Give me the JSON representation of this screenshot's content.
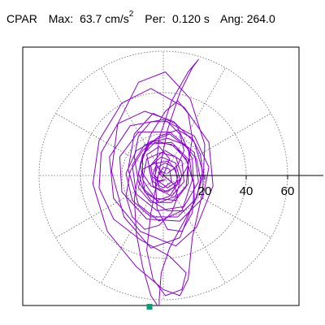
{
  "header": {
    "station": "CPAR",
    "max_label": "Max:",
    "max_value": "63.7",
    "max_unit": "cm/s",
    "max_unit_exp": "2",
    "per_label": "Per:",
    "per_value": "0.120 s",
    "ang_label": "Ang:",
    "ang_value": "264.0"
  },
  "chart_data": {
    "type": "scatter",
    "title": "",
    "xlabel": "",
    "ylabel": "",
    "radial_ticks": [
      20,
      40,
      60
    ],
    "radial_tick_labels": [
      "20",
      "40",
      "60"
    ],
    "radial_grid_circles": [
      20,
      40,
      60
    ],
    "angular_grid_step_deg": 30,
    "grid": true,
    "range": [
      -68,
      68
    ],
    "peak_marker": {
      "angle_deg": 264.0,
      "radius": 63.7,
      "color": "#0f9a7a"
    },
    "trace_color": "#8b00d8",
    "series": [
      {
        "type": "line",
        "points": [
          [
            0,
            0
          ],
          [
            3,
            8
          ],
          [
            -2,
            14
          ],
          [
            -8,
            10
          ],
          [
            -6,
            0
          ],
          [
            2,
            -6
          ],
          [
            8,
            -2
          ],
          [
            6,
            6
          ],
          [
            -1,
            9
          ],
          [
            -7,
            4
          ],
          [
            -5,
            -5
          ],
          [
            4,
            -10
          ],
          [
            10,
            -3
          ],
          [
            9,
            7
          ],
          [
            1,
            12
          ],
          [
            -8,
            8
          ],
          [
            -10,
            -2
          ],
          [
            -4,
            -11
          ],
          [
            6,
            -12
          ],
          [
            12,
            -4
          ],
          [
            12,
            8
          ],
          [
            4,
            16
          ],
          [
            -9,
            15
          ],
          [
            -15,
            5
          ],
          [
            -13,
            -9
          ],
          [
            -3,
            -17
          ],
          [
            10,
            -15
          ],
          [
            17,
            -3
          ],
          [
            15,
            11
          ],
          [
            3,
            21
          ],
          [
            -12,
            21
          ],
          [
            -21,
            9
          ],
          [
            -20,
            -8
          ],
          [
            -8,
            -21
          ],
          [
            8,
            -22
          ],
          [
            19,
            -11
          ],
          [
            22,
            4
          ],
          [
            15,
            19
          ],
          [
            0,
            27
          ],
          [
            -16,
            24
          ],
          [
            -26,
            9
          ],
          [
            -24,
            -11
          ],
          [
            -11,
            -27
          ],
          [
            6,
            -34
          ],
          [
            16,
            -25
          ],
          [
            24,
            -5
          ],
          [
            22,
            16
          ],
          [
            10,
            33
          ],
          [
            -6,
            42
          ],
          [
            -20,
            35
          ],
          [
            -31,
            17
          ],
          [
            -34,
            -4
          ],
          [
            -27,
            -27
          ],
          [
            -13,
            -44
          ],
          [
            0,
            -55
          ],
          [
            8,
            -58
          ],
          [
            12,
            -50
          ],
          [
            14,
            -30
          ],
          [
            19,
            -8
          ],
          [
            20,
            15
          ],
          [
            13,
            37
          ],
          [
            1,
            50
          ],
          [
            -12,
            45
          ],
          [
            -22,
            25
          ],
          [
            -25,
            2
          ],
          [
            -19,
            -20
          ],
          [
            -6,
            -35
          ],
          [
            8,
            -30
          ],
          [
            15,
            -12
          ],
          [
            14,
            8
          ],
          [
            6,
            25
          ],
          [
            -5,
            30
          ],
          [
            -14,
            20
          ],
          [
            -17,
            3
          ],
          [
            -12,
            -14
          ],
          [
            -2,
            -22
          ],
          [
            9,
            -17
          ],
          [
            14,
            -2
          ],
          [
            12,
            13
          ],
          [
            3,
            20
          ],
          [
            -7,
            16
          ],
          [
            -11,
            5
          ],
          [
            -9,
            -7
          ],
          [
            -2,
            -13
          ],
          [
            6,
            -10
          ],
          [
            9,
            0
          ],
          [
            6,
            9
          ],
          [
            -1,
            11
          ],
          [
            -6,
            5
          ],
          [
            -5,
            -3
          ],
          [
            0,
            -6
          ],
          [
            4,
            -3
          ],
          [
            3,
            3
          ],
          [
            0,
            4
          ],
          [
            -2,
            1
          ],
          [
            0,
            -1
          ]
        ]
      },
      {
        "type": "line",
        "points": [
          [
            0,
            0
          ],
          [
            -4,
            6
          ],
          [
            -10,
            3
          ],
          [
            -12,
            -6
          ],
          [
            -6,
            -13
          ],
          [
            4,
            -13
          ],
          [
            11,
            -5
          ],
          [
            12,
            6
          ],
          [
            6,
            14
          ],
          [
            -4,
            17
          ],
          [
            -13,
            12
          ],
          [
            -18,
            1
          ],
          [
            -15,
            -12
          ],
          [
            -6,
            -20
          ],
          [
            7,
            -20
          ],
          [
            16,
            -11
          ],
          [
            19,
            2
          ],
          [
            15,
            16
          ],
          [
            5,
            26
          ],
          [
            -9,
            31
          ],
          [
            -22,
            25
          ],
          [
            -30,
            11
          ],
          [
            -31,
            -6
          ],
          [
            -24,
            -21
          ],
          [
            -11,
            -31
          ],
          [
            3,
            -39
          ],
          [
            11,
            -47
          ],
          [
            9,
            -55
          ],
          [
            1,
            -58
          ],
          [
            -5,
            -50
          ],
          [
            -8,
            -36
          ],
          [
            -6,
            -18
          ],
          [
            -2,
            2
          ],
          [
            2,
            22
          ],
          [
            8,
            40
          ],
          [
            14,
            52
          ],
          [
            17,
            56
          ],
          [
            12,
            50
          ],
          [
            4,
            36
          ],
          [
            -2,
            18
          ],
          [
            -4,
            0
          ],
          [
            -3,
            -16
          ],
          [
            2,
            -26
          ],
          [
            9,
            -27
          ],
          [
            14,
            -18
          ],
          [
            15,
            -5
          ],
          [
            11,
            8
          ],
          [
            4,
            15
          ],
          [
            -4,
            16
          ],
          [
            -10,
            10
          ],
          [
            -12,
            1
          ],
          [
            -9,
            -8
          ],
          [
            -3,
            -12
          ],
          [
            3,
            -10
          ],
          [
            7,
            -4
          ],
          [
            6,
            3
          ],
          [
            2,
            7
          ],
          [
            -3,
            6
          ],
          [
            -5,
            1
          ],
          [
            -3,
            -3
          ],
          [
            0,
            -2
          ]
        ]
      },
      {
        "type": "line",
        "points": [
          [
            2,
            1
          ],
          [
            7,
            5
          ],
          [
            10,
            12
          ],
          [
            8,
            20
          ],
          [
            2,
            26
          ],
          [
            -6,
            26
          ],
          [
            -12,
            19
          ],
          [
            -14,
            9
          ],
          [
            -12,
            -3
          ],
          [
            -6,
            -12
          ],
          [
            2,
            -17
          ],
          [
            10,
            -17
          ],
          [
            16,
            -11
          ],
          [
            18,
            -2
          ],
          [
            16,
            8
          ],
          [
            10,
            15
          ],
          [
            2,
            18
          ],
          [
            -6,
            16
          ],
          [
            -10,
            9
          ],
          [
            -10,
            1
          ],
          [
            -6,
            -5
          ],
          [
            0,
            -8
          ],
          [
            5,
            -6
          ],
          [
            7,
            -1
          ],
          [
            5,
            4
          ],
          [
            1,
            6
          ],
          [
            -3,
            4
          ],
          [
            -4,
            0
          ],
          [
            -2,
            -3
          ],
          [
            1,
            -2
          ]
        ]
      },
      {
        "type": "line",
        "points": [
          [
            0,
            0
          ],
          [
            5,
            -4
          ],
          [
            7,
            -10
          ],
          [
            4,
            -18
          ],
          [
            -2,
            -24
          ],
          [
            -9,
            -26
          ],
          [
            -15,
            -20
          ],
          [
            -18,
            -10
          ],
          [
            -16,
            2
          ],
          [
            -10,
            12
          ],
          [
            -2,
            19
          ],
          [
            7,
            22
          ],
          [
            14,
            18
          ],
          [
            18,
            10
          ],
          [
            19,
            -1
          ],
          [
            15,
            -13
          ],
          [
            9,
            -24
          ],
          [
            3,
            -35
          ],
          [
            -1,
            -47
          ],
          [
            -2,
            -60
          ],
          [
            -2,
            -64
          ],
          [
            -6,
            -58
          ],
          [
            -10,
            -44
          ],
          [
            -13,
            -28
          ],
          [
            -14,
            -11
          ],
          [
            -11,
            6
          ],
          [
            -6,
            20
          ],
          [
            1,
            31
          ],
          [
            7,
            36
          ],
          [
            12,
            30
          ],
          [
            14,
            18
          ],
          [
            12,
            5
          ],
          [
            7,
            -4
          ],
          [
            2,
            -8
          ],
          [
            -2,
            -6
          ],
          [
            -3,
            -1
          ],
          [
            -1,
            2
          ],
          [
            1,
            1
          ]
        ]
      }
    ]
  }
}
